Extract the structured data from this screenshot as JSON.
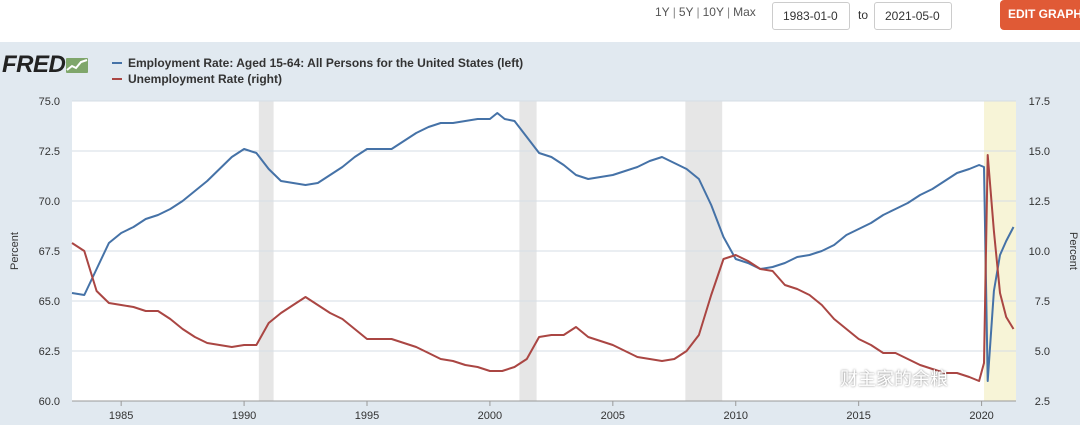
{
  "controls": {
    "range_options": [
      "1Y",
      "5Y",
      "10Y",
      "Max"
    ],
    "start_date": "1983-01-0",
    "end_date": "2021-05-0",
    "to_label": "to",
    "edit_button": "EDIT GRAPH"
  },
  "logo": {
    "text": "FRED"
  },
  "watermark": "财主家的余粮",
  "colors": {
    "employment": "#4572a7",
    "unemployment": "#aa4643",
    "recession": "#e6e6e6",
    "highlight": "#f7f4d7",
    "plot_bg": "#ffffff",
    "panel_bg": "#e1e9f0"
  },
  "chart_data": {
    "type": "line",
    "xlim": [
      1983.0,
      2021.4
    ],
    "x_ticks": [
      1985,
      1990,
      1995,
      2000,
      2005,
      2010,
      2015,
      2020
    ],
    "left_axis": {
      "label": "Percent",
      "ylim": [
        60,
        75
      ],
      "ticks": [
        "60.0",
        "62.5",
        "65.0",
        "67.5",
        "70.0",
        "72.5",
        "75.0"
      ]
    },
    "right_axis": {
      "label": "Percent",
      "ylim": [
        2.5,
        17.5
      ],
      "ticks": [
        "2.5",
        "5.0",
        "7.5",
        "10.0",
        "12.5",
        "15.0",
        "17.5"
      ]
    },
    "recessions": [
      [
        1990.6,
        1991.2
      ],
      [
        2001.2,
        2001.9
      ],
      [
        2007.95,
        2009.45
      ]
    ],
    "highlight": [
      2020.1,
      2021.4
    ],
    "series": [
      {
        "name": "Employment Rate: Aged 15-64: All Persons for the United States (left)",
        "axis": "left",
        "points": [
          [
            1983.0,
            65.4
          ],
          [
            1983.5,
            65.3
          ],
          [
            1984.0,
            66.6
          ],
          [
            1984.5,
            67.9
          ],
          [
            1985.0,
            68.4
          ],
          [
            1985.5,
            68.7
          ],
          [
            1986.0,
            69.1
          ],
          [
            1986.5,
            69.3
          ],
          [
            1987.0,
            69.6
          ],
          [
            1987.5,
            70.0
          ],
          [
            1988.0,
            70.5
          ],
          [
            1988.5,
            71.0
          ],
          [
            1989.0,
            71.6
          ],
          [
            1989.5,
            72.2
          ],
          [
            1990.0,
            72.6
          ],
          [
            1990.5,
            72.4
          ],
          [
            1991.0,
            71.6
          ],
          [
            1991.5,
            71.0
          ],
          [
            1992.0,
            70.9
          ],
          [
            1992.5,
            70.8
          ],
          [
            1993.0,
            70.9
          ],
          [
            1993.5,
            71.3
          ],
          [
            1994.0,
            71.7
          ],
          [
            1994.5,
            72.2
          ],
          [
            1995.0,
            72.6
          ],
          [
            1995.5,
            72.6
          ],
          [
            1996.0,
            72.6
          ],
          [
            1996.5,
            73.0
          ],
          [
            1997.0,
            73.4
          ],
          [
            1997.5,
            73.7
          ],
          [
            1998.0,
            73.9
          ],
          [
            1998.5,
            73.9
          ],
          [
            1999.0,
            74.0
          ],
          [
            1999.5,
            74.1
          ],
          [
            2000.0,
            74.1
          ],
          [
            2000.3,
            74.4
          ],
          [
            2000.6,
            74.1
          ],
          [
            2001.0,
            74.0
          ],
          [
            2001.5,
            73.2
          ],
          [
            2002.0,
            72.4
          ],
          [
            2002.5,
            72.2
          ],
          [
            2003.0,
            71.8
          ],
          [
            2003.5,
            71.3
          ],
          [
            2004.0,
            71.1
          ],
          [
            2004.5,
            71.2
          ],
          [
            2005.0,
            71.3
          ],
          [
            2005.5,
            71.5
          ],
          [
            2006.0,
            71.7
          ],
          [
            2006.5,
            72.0
          ],
          [
            2007.0,
            72.2
          ],
          [
            2007.5,
            71.9
          ],
          [
            2008.0,
            71.6
          ],
          [
            2008.5,
            71.1
          ],
          [
            2009.0,
            69.8
          ],
          [
            2009.5,
            68.2
          ],
          [
            2010.0,
            67.1
          ],
          [
            2010.5,
            66.9
          ],
          [
            2011.0,
            66.6
          ],
          [
            2011.5,
            66.7
          ],
          [
            2012.0,
            66.9
          ],
          [
            2012.5,
            67.2
          ],
          [
            2013.0,
            67.3
          ],
          [
            2013.5,
            67.5
          ],
          [
            2014.0,
            67.8
          ],
          [
            2014.5,
            68.3
          ],
          [
            2015.0,
            68.6
          ],
          [
            2015.5,
            68.9
          ],
          [
            2016.0,
            69.3
          ],
          [
            2016.5,
            69.6
          ],
          [
            2017.0,
            69.9
          ],
          [
            2017.5,
            70.3
          ],
          [
            2018.0,
            70.6
          ],
          [
            2018.5,
            71.0
          ],
          [
            2019.0,
            71.4
          ],
          [
            2019.5,
            71.6
          ],
          [
            2019.9,
            71.8
          ],
          [
            2020.1,
            71.7
          ],
          [
            2020.25,
            61.0
          ],
          [
            2020.5,
            65.5
          ],
          [
            2020.75,
            67.3
          ],
          [
            2021.0,
            68.0
          ],
          [
            2021.3,
            68.7
          ]
        ]
      },
      {
        "name": "Unemployment Rate (right)",
        "axis": "right",
        "points": [
          [
            1983.0,
            10.4
          ],
          [
            1983.5,
            10.0
          ],
          [
            1984.0,
            8.0
          ],
          [
            1984.5,
            7.4
          ],
          [
            1985.0,
            7.3
          ],
          [
            1985.5,
            7.2
          ],
          [
            1986.0,
            7.0
          ],
          [
            1986.5,
            7.0
          ],
          [
            1987.0,
            6.6
          ],
          [
            1987.5,
            6.1
          ],
          [
            1988.0,
            5.7
          ],
          [
            1988.5,
            5.4
          ],
          [
            1989.0,
            5.3
          ],
          [
            1989.5,
            5.2
          ],
          [
            1990.0,
            5.3
          ],
          [
            1990.5,
            5.3
          ],
          [
            1991.0,
            6.4
          ],
          [
            1991.5,
            6.9
          ],
          [
            1992.0,
            7.3
          ],
          [
            1992.5,
            7.7
          ],
          [
            1993.0,
            7.3
          ],
          [
            1993.5,
            6.9
          ],
          [
            1994.0,
            6.6
          ],
          [
            1994.5,
            6.1
          ],
          [
            1995.0,
            5.6
          ],
          [
            1995.5,
            5.6
          ],
          [
            1996.0,
            5.6
          ],
          [
            1996.5,
            5.4
          ],
          [
            1997.0,
            5.2
          ],
          [
            1997.5,
            4.9
          ],
          [
            1998.0,
            4.6
          ],
          [
            1998.5,
            4.5
          ],
          [
            1999.0,
            4.3
          ],
          [
            1999.5,
            4.2
          ],
          [
            2000.0,
            4.0
          ],
          [
            2000.5,
            4.0
          ],
          [
            2001.0,
            4.2
          ],
          [
            2001.5,
            4.6
          ],
          [
            2002.0,
            5.7
          ],
          [
            2002.5,
            5.8
          ],
          [
            2003.0,
            5.8
          ],
          [
            2003.5,
            6.2
          ],
          [
            2004.0,
            5.7
          ],
          [
            2004.5,
            5.5
          ],
          [
            2005.0,
            5.3
          ],
          [
            2005.5,
            5.0
          ],
          [
            2006.0,
            4.7
          ],
          [
            2006.5,
            4.6
          ],
          [
            2007.0,
            4.5
          ],
          [
            2007.5,
            4.6
          ],
          [
            2008.0,
            5.0
          ],
          [
            2008.5,
            5.8
          ],
          [
            2009.0,
            7.8
          ],
          [
            2009.5,
            9.6
          ],
          [
            2010.0,
            9.8
          ],
          [
            2010.5,
            9.5
          ],
          [
            2011.0,
            9.1
          ],
          [
            2011.5,
            9.0
          ],
          [
            2012.0,
            8.3
          ],
          [
            2012.5,
            8.1
          ],
          [
            2013.0,
            7.8
          ],
          [
            2013.5,
            7.3
          ],
          [
            2014.0,
            6.6
          ],
          [
            2014.5,
            6.1
          ],
          [
            2015.0,
            5.6
          ],
          [
            2015.5,
            5.3
          ],
          [
            2016.0,
            4.9
          ],
          [
            2016.5,
            4.9
          ],
          [
            2017.0,
            4.6
          ],
          [
            2017.5,
            4.3
          ],
          [
            2018.0,
            4.1
          ],
          [
            2018.5,
            3.9
          ],
          [
            2019.0,
            3.9
          ],
          [
            2019.5,
            3.7
          ],
          [
            2019.9,
            3.5
          ],
          [
            2020.1,
            4.4
          ],
          [
            2020.25,
            14.8
          ],
          [
            2020.5,
            11.0
          ],
          [
            2020.75,
            7.9
          ],
          [
            2021.0,
            6.7
          ],
          [
            2021.3,
            6.1
          ]
        ]
      }
    ]
  }
}
